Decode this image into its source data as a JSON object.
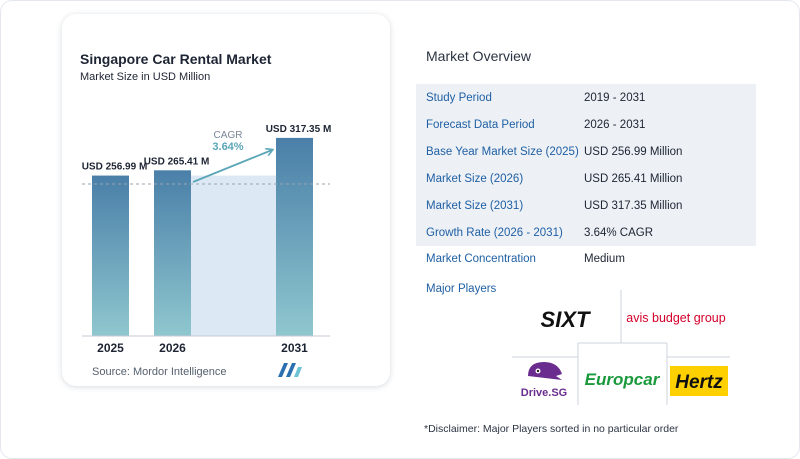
{
  "chart_data": {
    "type": "bar",
    "title": "Singapore Car Rental Market",
    "subtitle": "Market Size in USD Million",
    "categories": [
      "2025",
      "2026",
      "2031"
    ],
    "values": [
      256.99,
      265.41,
      317.35
    ],
    "value_labels": [
      "USD 256.99 M",
      "USD 265.41 M",
      "USD 317.35 M"
    ],
    "cagr_label": "CAGR",
    "cagr_value": "3.64%",
    "ylim": [
      0,
      330
    ],
    "grid": false,
    "colors": {
      "bar_top": "#4a7fa8",
      "bar_bottom": "#8fc7cf",
      "arrow": "#5aa6b8",
      "band": "#dce8f3"
    }
  },
  "source": "Source:  Mordor Intelligence",
  "overview": {
    "title": "Market Overview",
    "rows": [
      {
        "label": "Study Period",
        "value": "2019 - 2031"
      },
      {
        "label": "Forecast Data Period",
        "value": "2026 - 2031"
      },
      {
        "label": "Base Year Market Size (2025)",
        "value": "USD 256.99 Million"
      },
      {
        "label": "Market Size (2026)",
        "value": "USD 265.41 Million"
      },
      {
        "label": "Market Size (2031)",
        "value": "USD 317.35 Million"
      },
      {
        "label": "Growth Rate (2026 - 2031)",
        "value": "3.64% CAGR"
      },
      {
        "label": "Market Concentration",
        "value": "Medium"
      }
    ]
  },
  "players": {
    "title": "Major Players",
    "logos": [
      "SIXT",
      "avis budget group",
      "Drive.SG",
      "Europcar",
      "Hertz"
    ]
  },
  "disclaimer": "*Disclaimer: Major Players sorted in no particular order"
}
